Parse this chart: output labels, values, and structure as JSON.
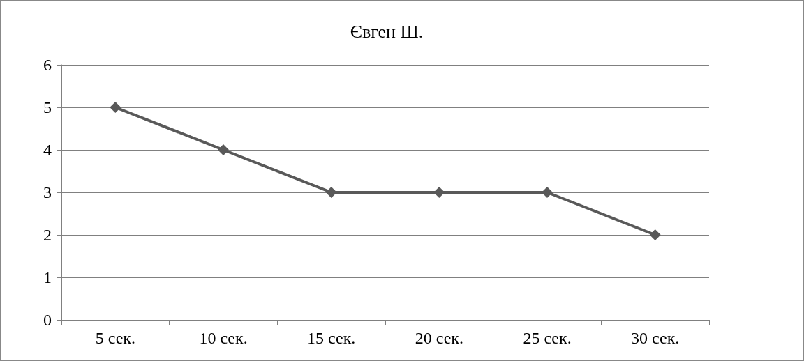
{
  "chart_data": {
    "type": "line",
    "title": "Євген Ш.",
    "categories": [
      "5 сек.",
      "10 сек.",
      "15 сек.",
      "20 сек.",
      "25 сек.",
      "30 сек."
    ],
    "series": [
      {
        "color": "#595959",
        "values": [
          5,
          4,
          3,
          3,
          3,
          2
        ]
      }
    ],
    "ylim": [
      0,
      6
    ],
    "yticks": [
      0,
      1,
      2,
      3,
      4,
      5,
      6
    ],
    "grid": "y",
    "marker": "diamond",
    "line_style": "solid"
  }
}
